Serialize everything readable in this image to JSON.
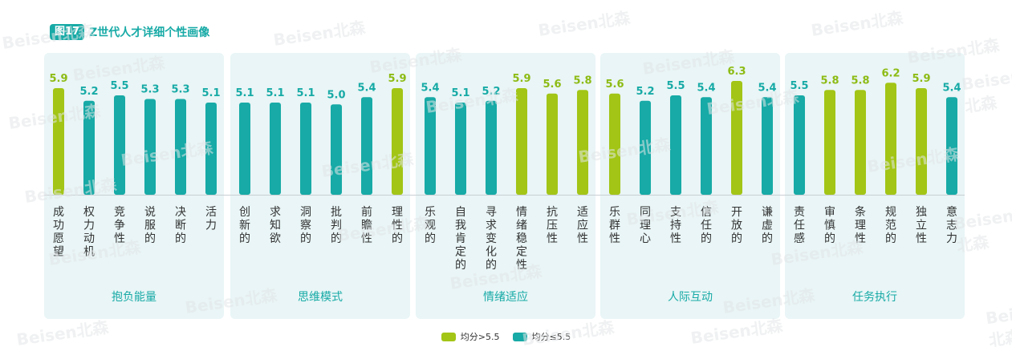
{
  "figure": {
    "badge": "图17",
    "title": "Z世代人才详细个性画像"
  },
  "colors": {
    "high": "#a2c516",
    "low": "#17aaa6",
    "value_high": "#8dbb14",
    "value_low": "#17aaa6",
    "group_bg": "#e9f5f6"
  },
  "watermark": "Beisen北森",
  "legend": [
    {
      "label": "均分>5.5",
      "color": "#a2c516"
    },
    {
      "label": "均分≤5.5",
      "color": "#17aaa6"
    }
  ],
  "chart_data": {
    "type": "bar",
    "threshold": 5.5,
    "groups": [
      {
        "name": "抱负能量",
        "items": [
          {
            "label": "成功愿望",
            "value": 5.9
          },
          {
            "label": "权力动机",
            "value": 5.2
          },
          {
            "label": "竞争性",
            "value": 5.5
          },
          {
            "label": "说服的",
            "value": 5.3
          },
          {
            "label": "决断的",
            "value": 5.3
          },
          {
            "label": "活力",
            "value": 5.1
          }
        ]
      },
      {
        "name": "思维模式",
        "items": [
          {
            "label": "创新的",
            "value": 5.1
          },
          {
            "label": "求知欲",
            "value": 5.1
          },
          {
            "label": "洞察的",
            "value": 5.1
          },
          {
            "label": "批判的",
            "value": 5.0
          },
          {
            "label": "前瞻性",
            "value": 5.4
          },
          {
            "label": "理性的",
            "value": 5.9
          }
        ]
      },
      {
        "name": "情绪适应",
        "items": [
          {
            "label": "乐观的",
            "value": 5.4
          },
          {
            "label": "自我肯定的",
            "value": 5.1
          },
          {
            "label": "寻求变化的",
            "value": 5.2
          },
          {
            "label": "情绪稳定性",
            "value": 5.9
          },
          {
            "label": "抗压性",
            "value": 5.6
          },
          {
            "label": "适应性",
            "value": 5.8
          }
        ]
      },
      {
        "name": "人际互动",
        "items": [
          {
            "label": "乐群性",
            "value": 5.6
          },
          {
            "label": "同理心",
            "value": 5.2
          },
          {
            "label": "支持性",
            "value": 5.5
          },
          {
            "label": "信任的",
            "value": 5.4
          },
          {
            "label": "开放的",
            "value": 6.3
          },
          {
            "label": "谦虚的",
            "value": 5.4
          }
        ]
      },
      {
        "name": "任务执行",
        "items": [
          {
            "label": "责任感",
            "value": 5.5
          },
          {
            "label": "审慎的",
            "value": 5.8
          },
          {
            "label": "条理性",
            "value": 5.8
          },
          {
            "label": "规范的",
            "value": 6.2
          },
          {
            "label": "独立性",
            "value": 5.9
          },
          {
            "label": "意志力",
            "value": 5.4
          }
        ]
      }
    ]
  }
}
